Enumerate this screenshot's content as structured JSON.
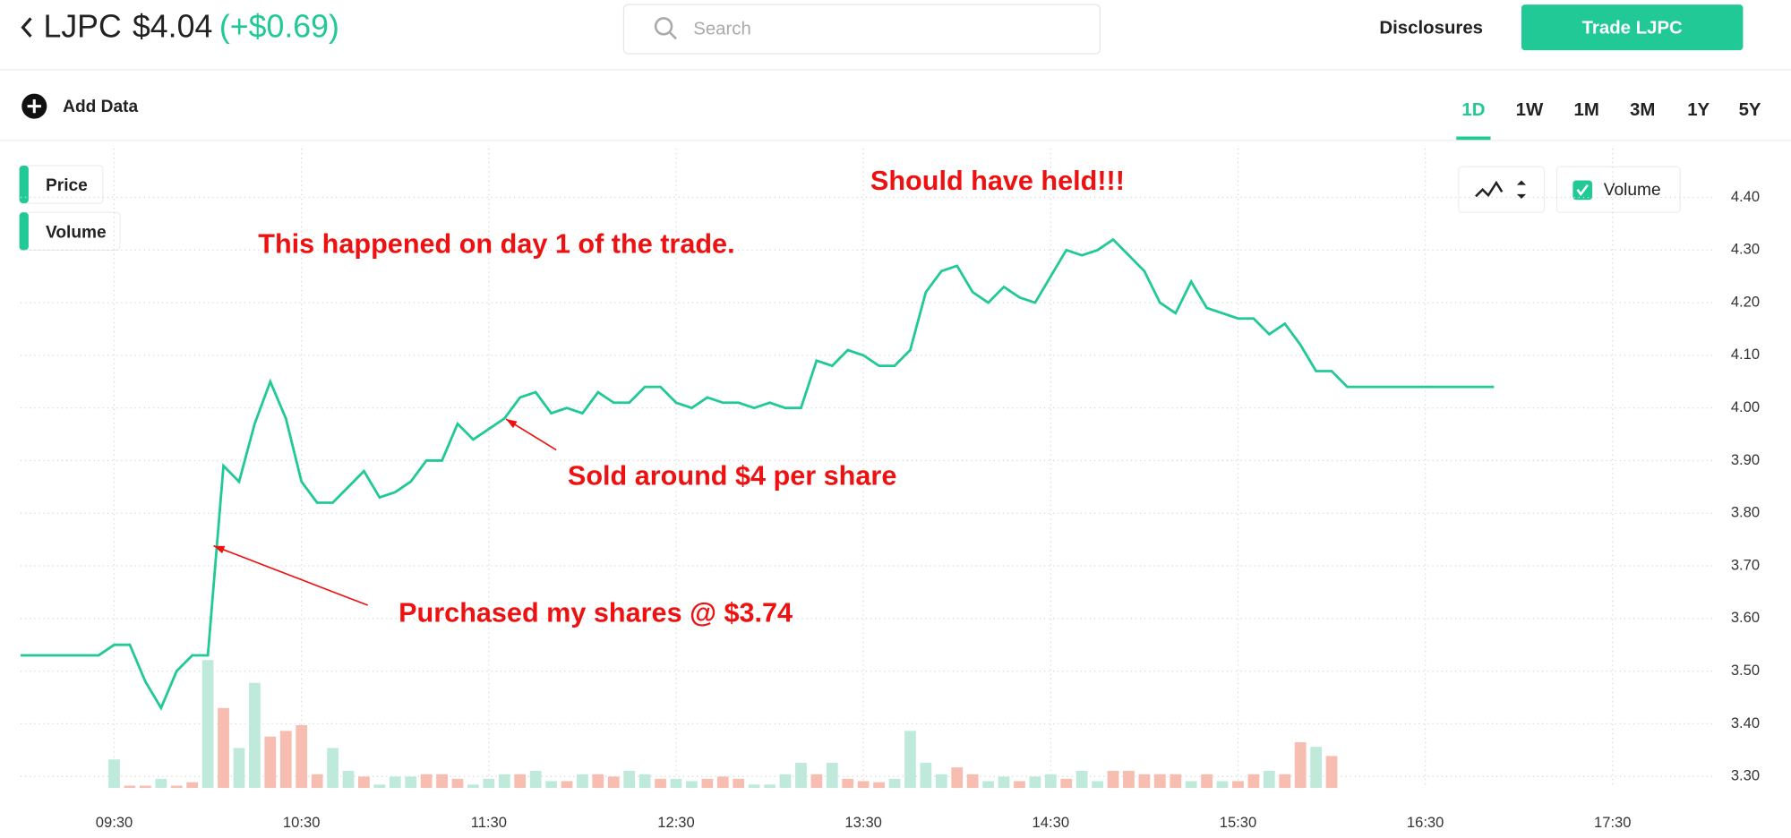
{
  "header": {
    "ticker": "LJPC",
    "price": "$4.04",
    "change": "(+$0.69)",
    "search_placeholder": "Search",
    "disclosures": "Disclosures",
    "trade_button": "Trade LJPC"
  },
  "toolbar": {
    "add_data": "Add Data",
    "ranges": [
      "1D",
      "1W",
      "1M",
      "3M",
      "1Y",
      "5Y"
    ],
    "active_range": 0
  },
  "chart_data": {
    "type": "line",
    "grid": true,
    "annotations": [
      "Should have held!!!",
      "This happened on day 1 of the trade.",
      "Sold around $4 per share",
      "Purchased my shares @ $3.74"
    ],
    "annotation_color": "#ee1111",
    "xlim": [
      540,
      1083
    ],
    "xticks": [
      {
        "value": 570,
        "label": "09:30"
      },
      {
        "value": 630,
        "label": "10:30"
      },
      {
        "value": 690,
        "label": "11:30"
      },
      {
        "value": 750,
        "label": "12:30"
      },
      {
        "value": 810,
        "label": "13:30"
      },
      {
        "value": 870,
        "label": "14:30"
      },
      {
        "value": 930,
        "label": "15:30"
      },
      {
        "value": 990,
        "label": "16:30"
      },
      {
        "value": 1050,
        "label": "17:30"
      }
    ],
    "ylim": [
      3.278,
      4.493
    ],
    "yticks": [
      {
        "value": 4.4,
        "label": "4.40"
      },
      {
        "value": 4.3,
        "label": "4.30"
      },
      {
        "value": 4.2,
        "label": "4.20"
      },
      {
        "value": 4.1,
        "label": "4.10"
      },
      {
        "value": 4.0,
        "label": "4.00"
      },
      {
        "value": 3.9,
        "label": "3.90"
      },
      {
        "value": 3.8,
        "label": "3.80"
      },
      {
        "value": 3.7,
        "label": "3.70"
      },
      {
        "value": 3.6,
        "label": "3.60"
      },
      {
        "value": 3.5,
        "label": "3.50"
      },
      {
        "value": 3.4,
        "label": "3.40"
      },
      {
        "value": 3.3,
        "label": "3.30"
      }
    ],
    "y2lim": [
      0,
      560
    ],
    "x": [
      540,
      565,
      570,
      575,
      580,
      585,
      590,
      595,
      600,
      605,
      610,
      615,
      620,
      625,
      630,
      635,
      640,
      645,
      650,
      655,
      660,
      665,
      670,
      675,
      680,
      685,
      690,
      695,
      700,
      705,
      710,
      715,
      720,
      725,
      730,
      735,
      740,
      745,
      750,
      755,
      760,
      765,
      770,
      775,
      780,
      785,
      790,
      795,
      800,
      805,
      810,
      815,
      820,
      825,
      830,
      835,
      840,
      845,
      850,
      855,
      860,
      865,
      870,
      875,
      880,
      885,
      890,
      895,
      900,
      905,
      910,
      915,
      920,
      925,
      930,
      935,
      940,
      945,
      950,
      955,
      960,
      965,
      1012
    ],
    "series": [
      {
        "name": "Price",
        "color": "#21c997",
        "values": [
          3.53,
          3.53,
          3.55,
          3.55,
          3.48,
          3.43,
          3.5,
          3.53,
          3.53,
          3.89,
          3.86,
          3.97,
          4.05,
          3.98,
          3.86,
          3.82,
          3.82,
          3.85,
          3.88,
          3.83,
          3.84,
          3.86,
          3.9,
          3.9,
          3.97,
          3.94,
          3.96,
          3.98,
          4.02,
          4.03,
          3.99,
          4.0,
          3.99,
          4.03,
          4.01,
          4.01,
          4.04,
          4.04,
          4.01,
          4.0,
          4.02,
          4.01,
          4.01,
          4.0,
          4.01,
          4.0,
          4.0,
          4.09,
          4.08,
          4.11,
          4.1,
          4.08,
          4.08,
          4.11,
          4.22,
          4.26,
          4.27,
          4.22,
          4.2,
          4.23,
          4.21,
          4.2,
          4.25,
          4.3,
          4.29,
          4.3,
          4.32,
          4.29,
          4.26,
          4.2,
          4.18,
          4.24,
          4.19,
          4.18,
          4.17,
          4.17,
          4.14,
          4.16,
          4.12,
          4.07,
          4.07,
          4.04,
          4.04
        ]
      },
      {
        "name": "Volume",
        "axis": "y2",
        "values": [
          null,
          null,
          25,
          2,
          2,
          8,
          2,
          5,
          112,
          70,
          35,
          92,
          45,
          50,
          55,
          12,
          35,
          15,
          10,
          3,
          10,
          10,
          12,
          12,
          8,
          3,
          8,
          12,
          12,
          15,
          6,
          6,
          12,
          12,
          10,
          15,
          12,
          8,
          8,
          6,
          8,
          10,
          8,
          3,
          3,
          12,
          22,
          12,
          22,
          8,
          6,
          5,
          8,
          50,
          22,
          12,
          18,
          12,
          6,
          10,
          6,
          10,
          12,
          8,
          15,
          6,
          15,
          15,
          12,
          12,
          12,
          6,
          12,
          6,
          6,
          12,
          15,
          12,
          40,
          36,
          28,
          null,
          null
        ],
        "colors": [
          null,
          null,
          "#bfeadb",
          "#f6bdb0",
          "#f6bdb0",
          "#bfeadb",
          "#f6bdb0",
          "#f6bdb0",
          "#bfeadb",
          "#f6bdb0",
          "#bfeadb",
          "#bfeadb",
          "#f6bdb0",
          "#f6bdb0",
          "#f6bdb0",
          "#f6bdb0",
          "#bfeadb",
          "#bfeadb",
          "#f6bdb0",
          "#bfeadb",
          "#bfeadb",
          "#bfeadb",
          "#f6bdb0",
          "#f6bdb0",
          "#f6bdb0",
          "#bfeadb",
          "#bfeadb",
          "#bfeadb",
          "#f6bdb0",
          "#bfeadb",
          "#bfeadb",
          "#f6bdb0",
          "#bfeadb",
          "#f6bdb0",
          "#f6bdb0",
          "#bfeadb",
          "#bfeadb",
          "#f6bdb0",
          "#bfeadb",
          "#bfeadb",
          "#f6bdb0",
          "#f6bdb0",
          "#f6bdb0",
          "#bfeadb",
          "#bfeadb",
          "#bfeadb",
          "#bfeadb",
          "#f6bdb0",
          "#bfeadb",
          "#f6bdb0",
          "#f6bdb0",
          "#f6bdb0",
          "#bfeadb",
          "#bfeadb",
          "#bfeadb",
          "#bfeadb",
          "#f6bdb0",
          "#f6bdb0",
          "#bfeadb",
          "#bfeadb",
          "#f6bdb0",
          "#bfeadb",
          "#bfeadb",
          "#f6bdb0",
          "#bfeadb",
          "#bfeadb",
          "#f6bdb0",
          "#f6bdb0",
          "#f6bdb0",
          "#f6bdb0",
          "#f6bdb0",
          "#bfeadb",
          "#f6bdb0",
          "#bfeadb",
          "#f6bdb0",
          "#f6bdb0",
          "#bfeadb",
          "#f6bdb0",
          "#f6bdb0",
          "#bfeadb",
          "#f6bdb0",
          null,
          null
        ]
      }
    ]
  }
}
